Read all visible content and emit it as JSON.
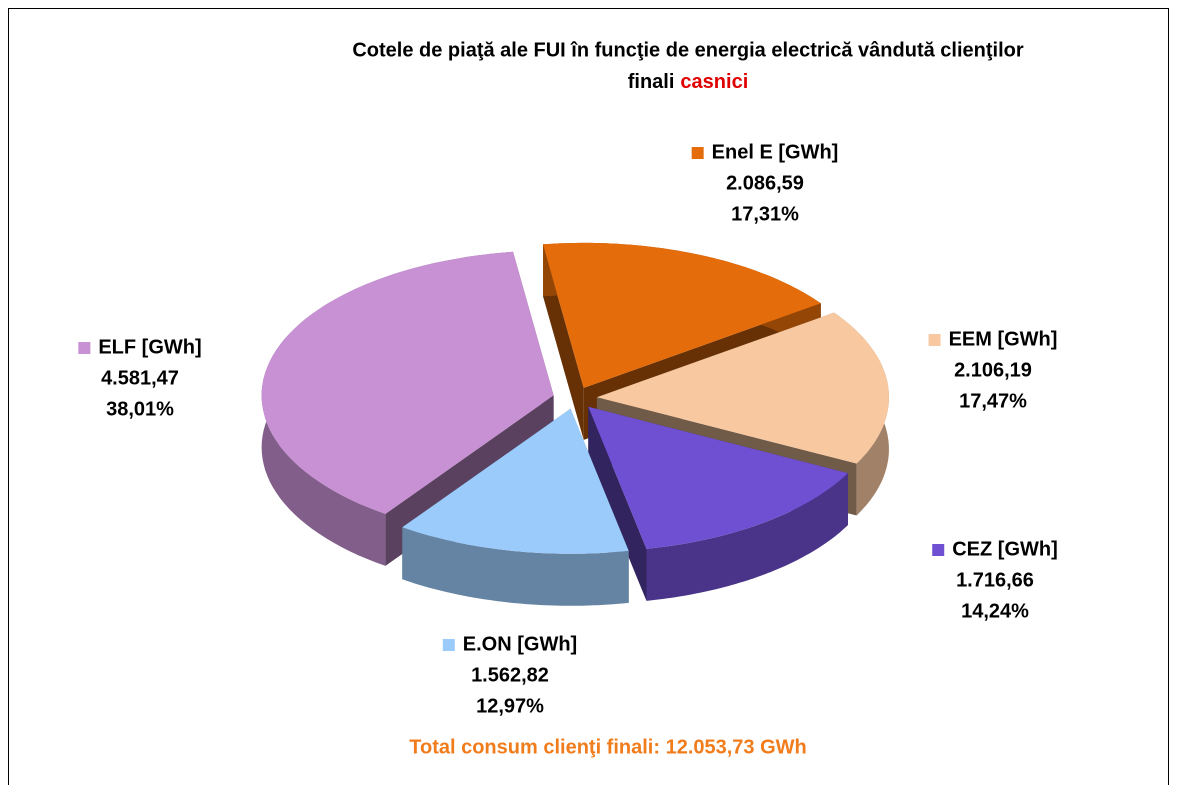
{
  "chart_data": {
    "type": "pie3d",
    "title_lines": [
      "Cotele de piaţă ale FUI în funcţie de energia electrică vândută clienţilor",
      "finali"
    ],
    "title_highlight": "casnici",
    "categories": [
      "Enel E [GWh]",
      "EEM [GWh]",
      "CEZ [GWh]",
      "E.ON [GWh]",
      "ELF [GWh]"
    ],
    "values": [
      2086.59,
      2106.19,
      1716.66,
      1562.82,
      4581.47
    ],
    "value_labels": [
      "2.086,59",
      "2.106,19",
      "1.716,66",
      "1.562,82",
      "4.581,47"
    ],
    "shares": [
      17.31,
      17.47,
      14.24,
      12.97,
      38.01
    ],
    "share_labels": [
      "17,31%",
      "17,47%",
      "14,24%",
      "12,97%",
      "38,01%"
    ],
    "colors": [
      "#e46c0a",
      "#f8c8a0",
      "#7050d2",
      "#9bcbfb",
      "#c891d4"
    ],
    "note": "Total consum clienţi finali: 12.053,73 GWh"
  }
}
